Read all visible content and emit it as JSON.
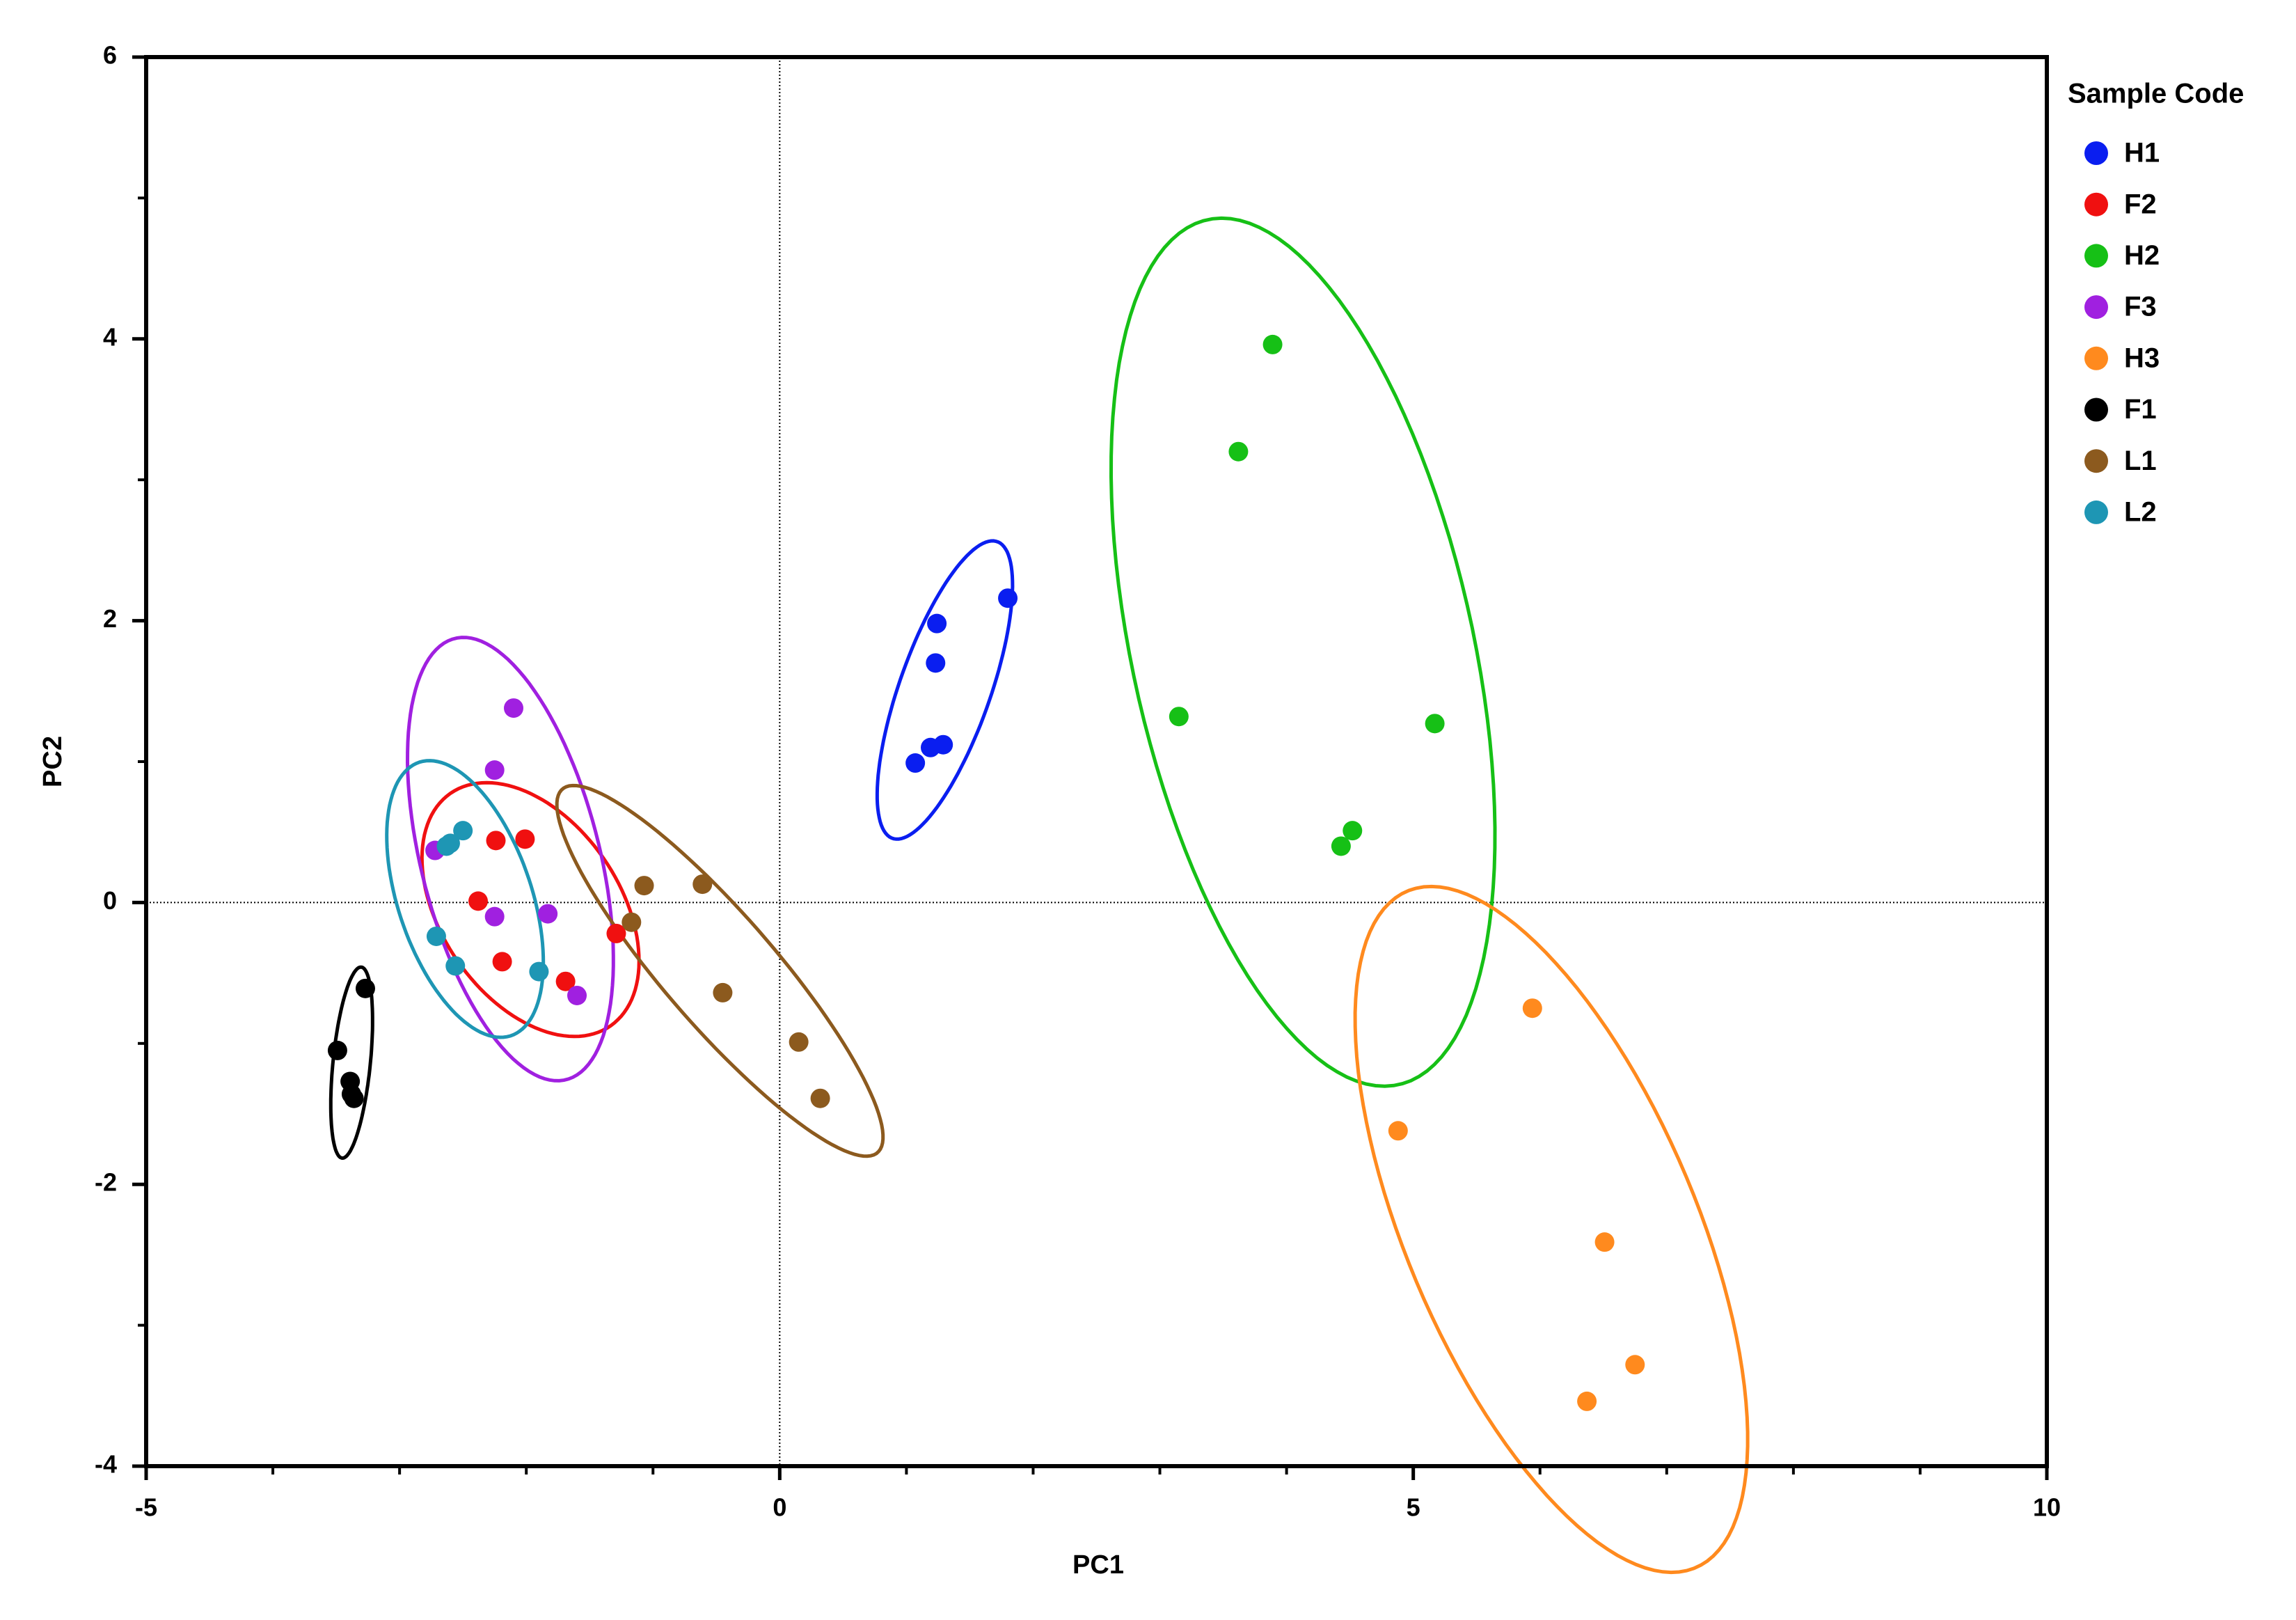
{
  "chart_data": {
    "type": "scatter",
    "xlabel": "PC1",
    "ylabel": "PC2",
    "legend_title": "Sample Code",
    "legend": "outside-right-top",
    "xlim": [
      -5,
      10
    ],
    "ylim": [
      -4,
      6
    ],
    "xticks": [
      -5,
      0,
      5,
      10
    ],
    "yticks": [
      -4,
      -2,
      0,
      2,
      4,
      6
    ],
    "xminorticks": [
      -4,
      -3,
      -2,
      -1,
      1,
      2,
      3,
      4,
      6,
      7,
      8,
      9
    ],
    "yminorticks": [
      -3,
      -1,
      1,
      3,
      5
    ],
    "zero_lines": true,
    "ellipses": true,
    "series": [
      {
        "name": "H1",
        "color": "#0a1ef0",
        "x": [
          1.07,
          1.19,
          1.29,
          1.23,
          1.24,
          1.8
        ],
        "values": [
          0.99,
          1.1,
          1.12,
          1.7,
          1.98,
          2.16
        ]
      },
      {
        "name": "F2",
        "color": "#f01010",
        "x": [
          -2.38,
          -2.19,
          -2.01,
          -2.24,
          -1.69,
          -1.29
        ],
        "values": [
          0.01,
          -0.42,
          0.45,
          0.44,
          -0.56,
          -0.22
        ]
      },
      {
        "name": "H2",
        "color": "#16c016",
        "x": [
          3.89,
          3.62,
          3.15,
          5.17,
          4.52,
          4.43
        ],
        "values": [
          3.96,
          3.2,
          1.32,
          1.27,
          0.51,
          0.4
        ]
      },
      {
        "name": "F3",
        "color": "#a020e0",
        "x": [
          -2.1,
          -2.25,
          -2.72,
          -2.25,
          -1.83,
          -1.6
        ],
        "values": [
          1.38,
          0.94,
          0.37,
          -0.1,
          -0.08,
          -0.66
        ]
      },
      {
        "name": "H3",
        "color": "#ff8a1e",
        "x": [
          5.94,
          4.88,
          6.51,
          6.75,
          6.37
        ],
        "values": [
          -0.75,
          -1.62,
          -2.41,
          -3.28,
          -3.54
        ]
      },
      {
        "name": "F1",
        "color": "#000000",
        "x": [
          -3.27,
          -3.49,
          -3.39,
          -3.38,
          -3.36
        ],
        "values": [
          -0.61,
          -1.05,
          -1.27,
          -1.36,
          -1.39
        ]
      },
      {
        "name": "L1",
        "color": "#8c5a1e",
        "x": [
          -1.07,
          -0.61,
          -1.17,
          -0.45,
          0.15,
          0.32
        ],
        "values": [
          0.12,
          0.13,
          -0.14,
          -0.64,
          -0.99,
          -1.39
        ]
      },
      {
        "name": "L2",
        "color": "#1e96b4",
        "x": [
          -2.5,
          -2.6,
          -2.63,
          -2.71,
          -2.56,
          -1.9
        ],
        "values": [
          0.51,
          0.42,
          0.4,
          -0.24,
          -0.45,
          -0.49
        ]
      }
    ]
  }
}
